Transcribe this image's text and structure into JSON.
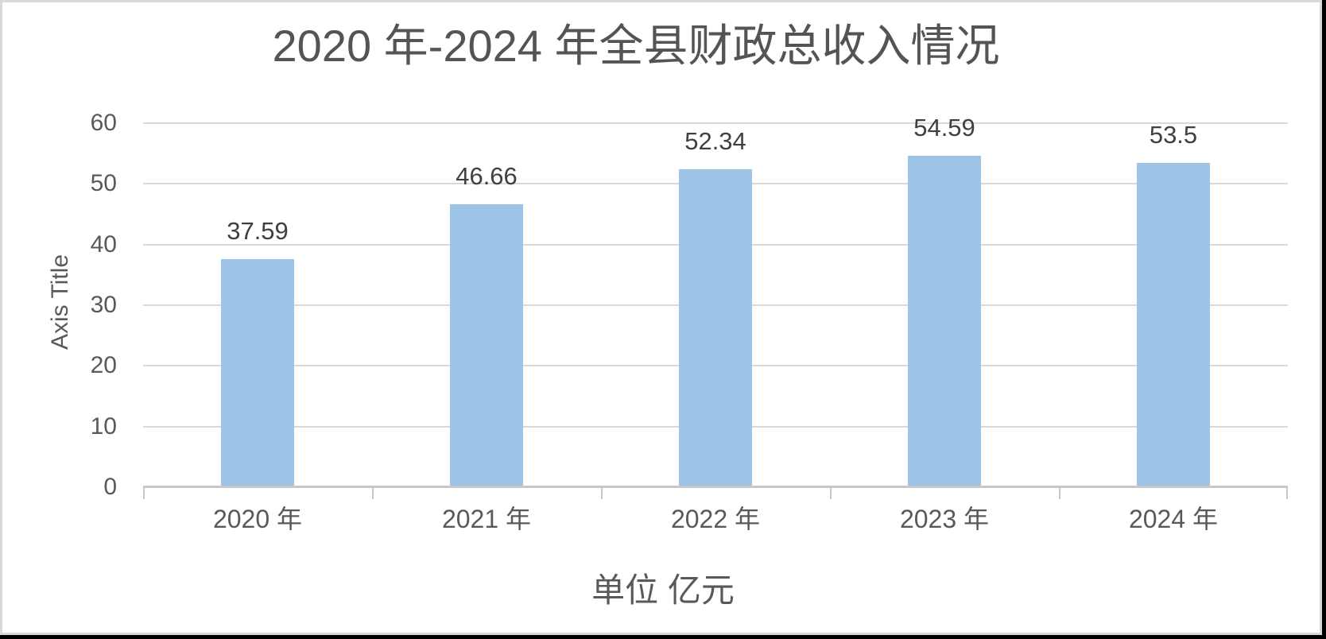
{
  "frame": {
    "background": "#ffffff",
    "border_color": "#d9d9d9",
    "page_edge_color": "#000000"
  },
  "chart_data": {
    "type": "bar",
    "title": "2020 年-2024 年全县财政总收入情况",
    "ylabel": "Axis Title",
    "xlabel": "单位 亿元",
    "categories": [
      "2020 年",
      "2021 年",
      "2022 年",
      "2023 年",
      "2024 年"
    ],
    "values": [
      37.59,
      46.66,
      52.34,
      54.59,
      53.5
    ],
    "data_labels": [
      "37.59",
      "46.66",
      "52.34",
      "54.59",
      "53.5"
    ],
    "ylim": [
      0,
      60
    ],
    "yticks": [
      0,
      10,
      20,
      30,
      40,
      50,
      60
    ],
    "grid": true,
    "legend": false,
    "bar_color": "#9dc3e6",
    "gridline_color": "#d9d9d9",
    "axis_line_color": "#c8c8c8",
    "title_color": "#545454",
    "data_label_color": "#404040",
    "tick_label_color": "#595959"
  }
}
